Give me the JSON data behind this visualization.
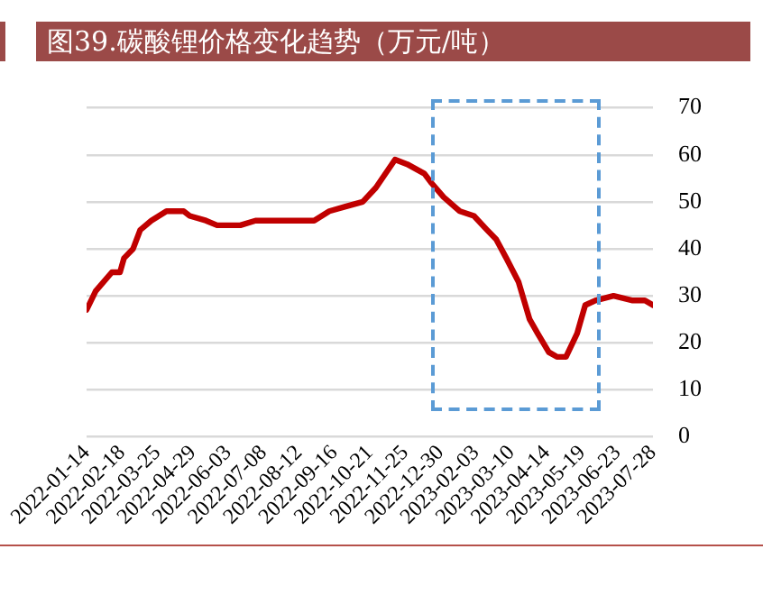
{
  "chart_data": {
    "type": "line",
    "title": "图39.碳酸锂价格变化趋势（万元/吨）",
    "x": [
      "2022-01-14",
      "2022-01-23",
      "2022-02-08",
      "2022-02-16",
      "2022-02-20",
      "2022-03-01",
      "2022-03-08",
      "2022-03-19",
      "2022-04-03",
      "2022-04-20",
      "2022-04-26",
      "2022-05-12",
      "2022-05-23",
      "2022-06-15",
      "2022-06-30",
      "2022-07-25",
      "2022-08-27",
      "2022-09-11",
      "2022-09-27",
      "2022-10-14",
      "2022-10-27",
      "2022-11-15",
      "2022-11-27",
      "2022-12-14",
      "2022-12-21",
      "2023-01-02",
      "2023-01-18",
      "2023-02-01",
      "2023-02-14",
      "2023-02-23",
      "2023-03-05",
      "2023-03-17",
      "2023-03-28",
      "2023-04-05",
      "2023-04-16",
      "2023-04-24",
      "2023-05-03",
      "2023-05-14",
      "2023-05-18",
      "2023-05-22",
      "2023-06-01",
      "2023-06-19",
      "2023-07-08",
      "2023-07-20",
      "2023-07-28"
    ],
    "series": [
      {
        "color": "#c00000",
        "values": [
          27,
          31,
          35,
          35,
          38,
          40,
          44,
          46,
          48,
          48,
          47,
          46,
          45,
          45,
          46,
          46,
          46,
          48,
          49,
          50,
          53,
          59,
          58,
          56,
          54,
          51,
          48,
          47,
          44,
          42,
          38,
          33,
          25,
          22,
          18,
          17,
          17,
          22,
          25,
          28,
          29,
          30,
          29,
          29,
          28
        ]
      }
    ],
    "xlim": [
      "2022-01-14",
      "2023-07-28"
    ],
    "xticks": [
      "2022-01-14",
      "2022-02-18",
      "2022-03-25",
      "2022-04-29",
      "2022-06-03",
      "2022-07-08",
      "2022-08-12",
      "2022-09-16",
      "2022-10-21",
      "2022-11-25",
      "2022-12-30",
      "2023-02-03",
      "2023-03-10",
      "2023-04-14",
      "2023-05-19",
      "2023-06-23",
      "2023-07-28"
    ],
    "ylim": [
      0,
      70
    ],
    "yticks": [
      0,
      10,
      20,
      30,
      40,
      50,
      60,
      70
    ],
    "grid": "y",
    "marker": "none",
    "line_style": "solid"
  }
}
